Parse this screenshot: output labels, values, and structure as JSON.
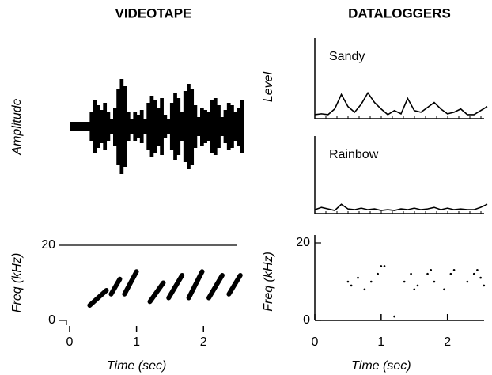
{
  "headers": [
    "VIDEOTAPE",
    "DATALOGGERS"
  ],
  "chart_data": [
    {
      "type": "waveform",
      "ylabel": "Amplitude",
      "xlim": [
        0,
        2.6
      ],
      "ylim": [
        -1,
        1
      ],
      "x": [
        0,
        0.05,
        0.1,
        0.15,
        0.2,
        0.25,
        0.3,
        0.35,
        0.4,
        0.45,
        0.5,
        0.55,
        0.6,
        0.65,
        0.7,
        0.75,
        0.8,
        0.85,
        0.9,
        0.95,
        1.0,
        1.05,
        1.1,
        1.15,
        1.2,
        1.25,
        1.3,
        1.35,
        1.4,
        1.45,
        1.5,
        1.55,
        1.6,
        1.65,
        1.7,
        1.75,
        1.8,
        1.85,
        1.9,
        1.95,
        2.0,
        2.05,
        2.1,
        2.15,
        2.2,
        2.25,
        2.3,
        2.35,
        2.4,
        2.45,
        2.5,
        2.55
      ],
      "values": [
        0.1,
        0.1,
        0.1,
        0.1,
        0.1,
        0.1,
        0.3,
        0.55,
        0.45,
        0.35,
        0.5,
        0.3,
        0.15,
        0.4,
        0.8,
        1.0,
        0.85,
        0.3,
        0.15,
        0.3,
        0.25,
        0.35,
        0.15,
        0.5,
        0.65,
        0.55,
        0.4,
        0.6,
        0.25,
        0.15,
        0.5,
        0.7,
        0.6,
        0.3,
        0.75,
        0.9,
        0.8,
        0.45,
        0.2,
        0.4,
        0.35,
        0.3,
        0.55,
        0.6,
        0.45,
        0.2,
        0.35,
        0.5,
        0.45,
        0.3,
        0.4,
        0.55
      ],
      "color": "#000000"
    },
    {
      "type": "level",
      "title": "Sandy",
      "ylabel": "Level",
      "xlim": [
        0,
        2.6
      ],
      "ylim": [
        0,
        1
      ],
      "x": [
        0,
        0.1,
        0.2,
        0.3,
        0.4,
        0.5,
        0.6,
        0.7,
        0.8,
        0.9,
        1.0,
        1.1,
        1.2,
        1.3,
        1.4,
        1.5,
        1.6,
        1.7,
        1.8,
        1.9,
        2.0,
        2.1,
        2.2,
        2.3,
        2.4,
        2.5,
        2.6
      ],
      "values": [
        0.05,
        0.06,
        0.05,
        0.12,
        0.3,
        0.15,
        0.08,
        0.18,
        0.32,
        0.2,
        0.12,
        0.05,
        0.1,
        0.06,
        0.25,
        0.1,
        0.08,
        0.14,
        0.2,
        0.12,
        0.06,
        0.08,
        0.12,
        0.05,
        0.05,
        0.1,
        0.15
      ],
      "color": "#000000"
    },
    {
      "type": "level",
      "title": "Rainbow",
      "xlim": [
        0,
        2.6
      ],
      "ylim": [
        0,
        1
      ],
      "x": [
        0,
        0.1,
        0.2,
        0.3,
        0.4,
        0.5,
        0.6,
        0.7,
        0.8,
        0.9,
        1.0,
        1.1,
        1.2,
        1.3,
        1.4,
        1.5,
        1.6,
        1.7,
        1.8,
        1.9,
        2.0,
        2.1,
        2.2,
        2.3,
        2.4,
        2.5,
        2.6
      ],
      "values": [
        0.05,
        0.08,
        0.06,
        0.04,
        0.12,
        0.06,
        0.05,
        0.07,
        0.05,
        0.06,
        0.04,
        0.05,
        0.04,
        0.06,
        0.05,
        0.07,
        0.05,
        0.06,
        0.08,
        0.05,
        0.07,
        0.05,
        0.06,
        0.05,
        0.05,
        0.08,
        0.12
      ],
      "color": "#000000"
    },
    {
      "type": "spectrogram",
      "ylabel": "Freq (kHz)",
      "xlabel": "Time (sec)",
      "xlim": [
        0,
        2.6
      ],
      "ylim": [
        0,
        20
      ],
      "xticks": [
        0,
        1,
        2
      ],
      "yticks": [
        0,
        20
      ],
      "strokes": [
        {
          "x": [
            0.3,
            0.55
          ],
          "values": [
            4,
            8
          ]
        },
        {
          "x": [
            0.62,
            0.75
          ],
          "values": [
            7,
            11
          ]
        },
        {
          "x": [
            0.82,
            1.0
          ],
          "values": [
            7,
            13
          ]
        },
        {
          "x": [
            1.2,
            1.4
          ],
          "values": [
            5,
            10
          ]
        },
        {
          "x": [
            1.48,
            1.68
          ],
          "values": [
            6,
            12
          ]
        },
        {
          "x": [
            1.78,
            1.98
          ],
          "values": [
            6,
            13
          ]
        },
        {
          "x": [
            2.08,
            2.28
          ],
          "values": [
            6,
            12
          ]
        },
        {
          "x": [
            2.38,
            2.55
          ],
          "values": [
            7,
            12
          ]
        }
      ],
      "color": "#000000"
    },
    {
      "type": "scatter",
      "ylabel": "Freq (kHz)",
      "xlabel": "Time (sec)",
      "xlim": [
        0,
        2.6
      ],
      "ylim": [
        0,
        20
      ],
      "xticks": [
        0,
        1,
        2
      ],
      "yticks": [
        0,
        20
      ],
      "x": [
        0.5,
        0.55,
        0.65,
        0.75,
        0.85,
        0.95,
        1.0,
        1.05,
        1.2,
        1.35,
        1.45,
        1.5,
        1.55,
        1.7,
        1.75,
        1.8,
        1.95,
        2.05,
        2.1,
        2.3,
        2.4,
        2.45,
        2.5,
        2.55
      ],
      "values": [
        10,
        9,
        11,
        8,
        10,
        12,
        14,
        14,
        1,
        10,
        12,
        8,
        9,
        12,
        13,
        10,
        8,
        12,
        13,
        10,
        12,
        13,
        11,
        9
      ],
      "color": "#000000"
    }
  ]
}
